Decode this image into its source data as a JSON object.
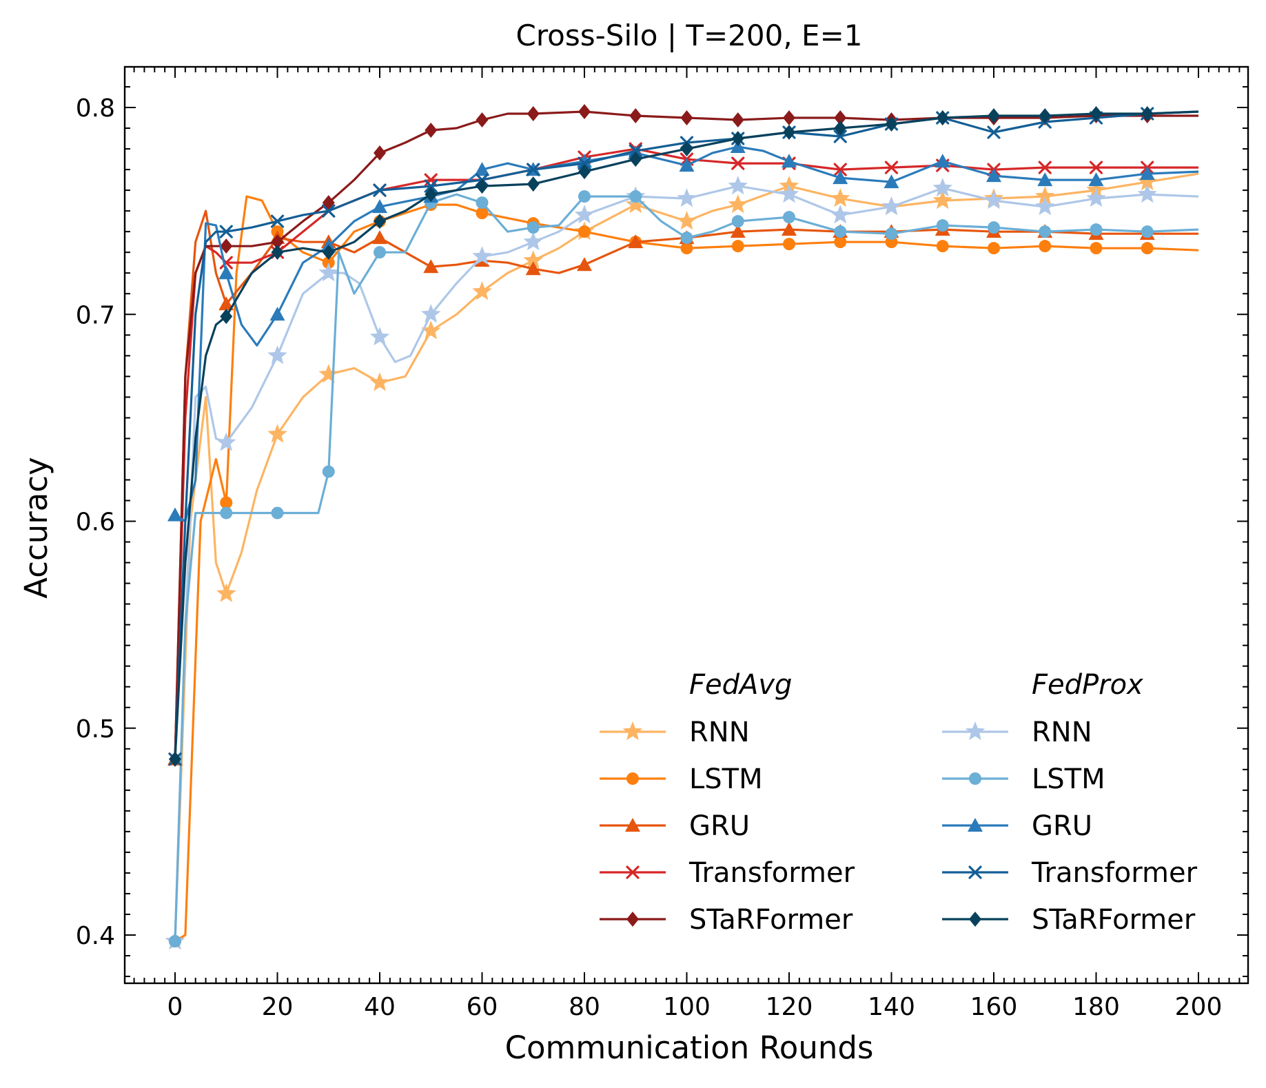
{
  "chart_data": {
    "type": "line",
    "title": "Cross-Silo | T=200, E=1",
    "xlabel": "Communication Rounds",
    "ylabel": "Accuracy",
    "xlim": [
      -10,
      210
    ],
    "ylim": [
      0.38,
      0.82
    ],
    "xticks": [
      0,
      20,
      40,
      60,
      80,
      100,
      120,
      140,
      160,
      180,
      200
    ],
    "xtick_labels": [
      "0",
      "20",
      "40",
      "60",
      "80",
      "100",
      "120",
      "140",
      "160",
      "180",
      "200"
    ],
    "yticks": [
      0.4,
      0.5,
      0.6,
      0.7,
      0.8
    ],
    "ytick_labels": [
      "0.4",
      "0.5",
      "0.6",
      "0.7",
      "0.8"
    ],
    "legend": {
      "position": "lower-right",
      "group_titles": [
        "FedAvg",
        "FedProx"
      ]
    },
    "series": [
      {
        "group": "FedAvg",
        "name": "RNN",
        "color": "#fdb462",
        "marker": "star",
        "x": [
          0,
          3,
          6,
          8,
          10,
          13,
          16,
          20,
          25,
          30,
          35,
          40,
          45,
          50,
          55,
          60,
          65,
          70,
          75,
          80,
          90,
          100,
          105,
          110,
          120,
          130,
          140,
          150,
          160,
          170,
          180,
          190,
          200
        ],
        "y": [
          0.397,
          0.6,
          0.66,
          0.58,
          0.565,
          0.585,
          0.615,
          0.642,
          0.66,
          0.671,
          0.674,
          0.667,
          0.67,
          0.692,
          0.7,
          0.711,
          0.72,
          0.726,
          0.732,
          0.74,
          0.753,
          0.745,
          0.75,
          0.753,
          0.762,
          0.756,
          0.752,
          0.755,
          0.756,
          0.757,
          0.76,
          0.764,
          0.768
        ],
        "markers_at": [
          0,
          10,
          20,
          30,
          40,
          50,
          60,
          70,
          80,
          90,
          100,
          110,
          120,
          130,
          140,
          150,
          160,
          170,
          180,
          190
        ]
      },
      {
        "group": "FedAvg",
        "name": "LSTM",
        "color": "#fd7f0e",
        "marker": "circle",
        "x": [
          0,
          2,
          5,
          8,
          10,
          12,
          14,
          17,
          20,
          25,
          30,
          35,
          40,
          50,
          55,
          60,
          70,
          80,
          90,
          100,
          110,
          120,
          130,
          140,
          150,
          160,
          170,
          180,
          190,
          200
        ],
        "y": [
          0.397,
          0.4,
          0.6,
          0.63,
          0.609,
          0.72,
          0.757,
          0.755,
          0.74,
          0.73,
          0.725,
          0.74,
          0.745,
          0.753,
          0.753,
          0.749,
          0.744,
          0.74,
          0.735,
          0.732,
          0.733,
          0.734,
          0.735,
          0.735,
          0.733,
          0.732,
          0.733,
          0.732,
          0.732,
          0.731
        ],
        "markers_at": [
          0,
          10,
          20,
          30,
          40,
          50,
          60,
          70,
          80,
          90,
          100,
          110,
          120,
          130,
          140,
          150,
          160,
          170,
          180,
          190
        ]
      },
      {
        "group": "FedAvg",
        "name": "GRU",
        "color": "#e6550d",
        "marker": "triangle",
        "x": [
          0,
          2,
          4,
          6,
          8,
          10,
          15,
          20,
          25,
          30,
          35,
          40,
          45,
          50,
          55,
          60,
          65,
          70,
          75,
          80,
          90,
          100,
          110,
          120,
          130,
          140,
          150,
          160,
          170,
          180,
          190,
          200
        ],
        "y": [
          0.485,
          0.67,
          0.735,
          0.75,
          0.72,
          0.705,
          0.72,
          0.737,
          0.735,
          0.735,
          0.73,
          0.737,
          0.73,
          0.723,
          0.724,
          0.726,
          0.725,
          0.722,
          0.72,
          0.724,
          0.735,
          0.737,
          0.74,
          0.741,
          0.74,
          0.74,
          0.741,
          0.74,
          0.74,
          0.739,
          0.739,
          0.739
        ],
        "markers_at": [
          0,
          10,
          20,
          30,
          40,
          50,
          60,
          70,
          80,
          90,
          100,
          110,
          120,
          130,
          140,
          150,
          160,
          170,
          180,
          190
        ]
      },
      {
        "group": "FedAvg",
        "name": "Transformer",
        "color": "#d62728",
        "marker": "x",
        "x": [
          0,
          2,
          4,
          6,
          8,
          10,
          15,
          20,
          25,
          30,
          40,
          50,
          60,
          70,
          80,
          90,
          100,
          110,
          120,
          130,
          140,
          150,
          160,
          170,
          180,
          190,
          200
        ],
        "y": [
          0.485,
          0.65,
          0.72,
          0.733,
          0.73,
          0.725,
          0.725,
          0.73,
          0.74,
          0.75,
          0.76,
          0.765,
          0.765,
          0.77,
          0.776,
          0.78,
          0.775,
          0.773,
          0.773,
          0.77,
          0.771,
          0.772,
          0.77,
          0.771,
          0.771,
          0.771,
          0.771
        ],
        "markers_at": [
          0,
          10,
          20,
          30,
          40,
          50,
          60,
          70,
          80,
          90,
          100,
          110,
          120,
          130,
          140,
          150,
          160,
          170,
          180,
          190
        ]
      },
      {
        "group": "FedAvg",
        "name": "STaRFormer",
        "color": "#8b1a1a",
        "marker": "diamond",
        "x": [
          0,
          2,
          4,
          6,
          8,
          10,
          15,
          20,
          25,
          30,
          35,
          40,
          45,
          50,
          55,
          60,
          65,
          70,
          80,
          90,
          100,
          110,
          120,
          130,
          140,
          150,
          160,
          170,
          180,
          190,
          200
        ],
        "y": [
          0.485,
          0.67,
          0.72,
          0.733,
          0.733,
          0.733,
          0.733,
          0.735,
          0.745,
          0.754,
          0.765,
          0.778,
          0.783,
          0.789,
          0.79,
          0.794,
          0.797,
          0.797,
          0.798,
          0.796,
          0.795,
          0.794,
          0.795,
          0.795,
          0.794,
          0.795,
          0.795,
          0.795,
          0.796,
          0.796,
          0.796
        ],
        "markers_at": [
          0,
          10,
          20,
          30,
          40,
          50,
          60,
          70,
          80,
          90,
          100,
          110,
          120,
          130,
          140,
          150,
          160,
          170,
          180,
          190
        ]
      },
      {
        "group": "FedProx",
        "name": "RNN",
        "color": "#aec7e8",
        "marker": "star",
        "x": [
          0,
          2,
          4,
          6,
          8,
          10,
          15,
          20,
          25,
          30,
          33,
          36,
          40,
          43,
          46,
          50,
          55,
          60,
          65,
          70,
          75,
          80,
          90,
          100,
          110,
          120,
          130,
          140,
          150,
          160,
          170,
          180,
          190,
          200
        ],
        "y": [
          0.397,
          0.55,
          0.66,
          0.665,
          0.64,
          0.638,
          0.655,
          0.68,
          0.71,
          0.72,
          0.72,
          0.715,
          0.689,
          0.677,
          0.68,
          0.7,
          0.715,
          0.728,
          0.73,
          0.735,
          0.74,
          0.748,
          0.757,
          0.756,
          0.762,
          0.758,
          0.748,
          0.752,
          0.761,
          0.755,
          0.752,
          0.756,
          0.758,
          0.757
        ],
        "markers_at": [
          0,
          10,
          20,
          30,
          40,
          50,
          60,
          70,
          80,
          90,
          100,
          110,
          120,
          130,
          140,
          150,
          160,
          170,
          180,
          190
        ]
      },
      {
        "group": "FedProx",
        "name": "LSTM",
        "color": "#6baed6",
        "marker": "circle",
        "x": [
          0,
          2,
          4,
          10,
          20,
          28,
          30,
          32,
          35,
          40,
          45,
          50,
          55,
          60,
          65,
          70,
          75,
          80,
          90,
          95,
          100,
          105,
          110,
          120,
          130,
          140,
          150,
          160,
          170,
          180,
          190,
          200
        ],
        "y": [
          0.397,
          0.55,
          0.604,
          0.604,
          0.604,
          0.604,
          0.624,
          0.73,
          0.71,
          0.73,
          0.73,
          0.754,
          0.758,
          0.754,
          0.74,
          0.742,
          0.743,
          0.757,
          0.757,
          0.745,
          0.737,
          0.74,
          0.745,
          0.747,
          0.74,
          0.739,
          0.743,
          0.742,
          0.74,
          0.741,
          0.74,
          0.741
        ],
        "markers_at": [
          0,
          10,
          20,
          30,
          40,
          50,
          60,
          70,
          80,
          90,
          100,
          110,
          120,
          130,
          140,
          150,
          160,
          170,
          180,
          190
        ]
      },
      {
        "group": "FedProx",
        "name": "GRU",
        "color": "#2b7bba",
        "marker": "triangle",
        "x": [
          0,
          2,
          4,
          6,
          8,
          10,
          13,
          16,
          20,
          25,
          30,
          35,
          40,
          50,
          55,
          60,
          65,
          70,
          80,
          90,
          100,
          105,
          110,
          115,
          120,
          130,
          140,
          150,
          160,
          170,
          180,
          190,
          200
        ],
        "y": [
          0.603,
          0.6,
          0.62,
          0.744,
          0.743,
          0.72,
          0.695,
          0.685,
          0.7,
          0.725,
          0.733,
          0.745,
          0.752,
          0.757,
          0.76,
          0.77,
          0.773,
          0.77,
          0.774,
          0.778,
          0.772,
          0.778,
          0.781,
          0.779,
          0.774,
          0.766,
          0.764,
          0.774,
          0.767,
          0.765,
          0.765,
          0.768,
          0.769
        ],
        "markers_at": [
          0,
          10,
          20,
          30,
          40,
          50,
          60,
          70,
          80,
          90,
          100,
          110,
          120,
          130,
          140,
          150,
          160,
          170,
          180,
          190
        ]
      },
      {
        "group": "FedProx",
        "name": "Transformer",
        "color": "#135e96",
        "marker": "x",
        "x": [
          0,
          2,
          4,
          6,
          8,
          10,
          15,
          20,
          25,
          30,
          40,
          50,
          60,
          70,
          80,
          90,
          100,
          110,
          120,
          130,
          140,
          150,
          160,
          170,
          180,
          190,
          200
        ],
        "y": [
          0.485,
          0.6,
          0.7,
          0.735,
          0.74,
          0.74,
          0.742,
          0.745,
          0.748,
          0.75,
          0.76,
          0.762,
          0.765,
          0.77,
          0.773,
          0.779,
          0.783,
          0.785,
          0.788,
          0.786,
          0.792,
          0.795,
          0.788,
          0.793,
          0.795,
          0.797,
          0.798
        ],
        "markers_at": [
          0,
          10,
          20,
          30,
          40,
          50,
          60,
          70,
          80,
          90,
          100,
          110,
          120,
          130,
          140,
          150,
          160,
          170,
          180,
          190
        ]
      },
      {
        "group": "FedProx",
        "name": "STaRFormer",
        "color": "#08415c",
        "marker": "diamond",
        "x": [
          0,
          2,
          4,
          6,
          8,
          10,
          15,
          20,
          25,
          30,
          35,
          40,
          45,
          50,
          55,
          60,
          70,
          80,
          90,
          100,
          110,
          120,
          130,
          140,
          150,
          160,
          170,
          180,
          190,
          200
        ],
        "y": [
          0.485,
          0.58,
          0.64,
          0.68,
          0.695,
          0.699,
          0.72,
          0.73,
          0.732,
          0.73,
          0.735,
          0.745,
          0.75,
          0.758,
          0.76,
          0.762,
          0.763,
          0.769,
          0.775,
          0.78,
          0.785,
          0.788,
          0.79,
          0.792,
          0.795,
          0.796,
          0.796,
          0.797,
          0.797,
          0.798
        ],
        "markers_at": [
          0,
          10,
          20,
          30,
          40,
          50,
          60,
          70,
          80,
          90,
          100,
          110,
          120,
          130,
          140,
          150,
          160,
          170,
          180,
          190
        ]
      }
    ]
  }
}
